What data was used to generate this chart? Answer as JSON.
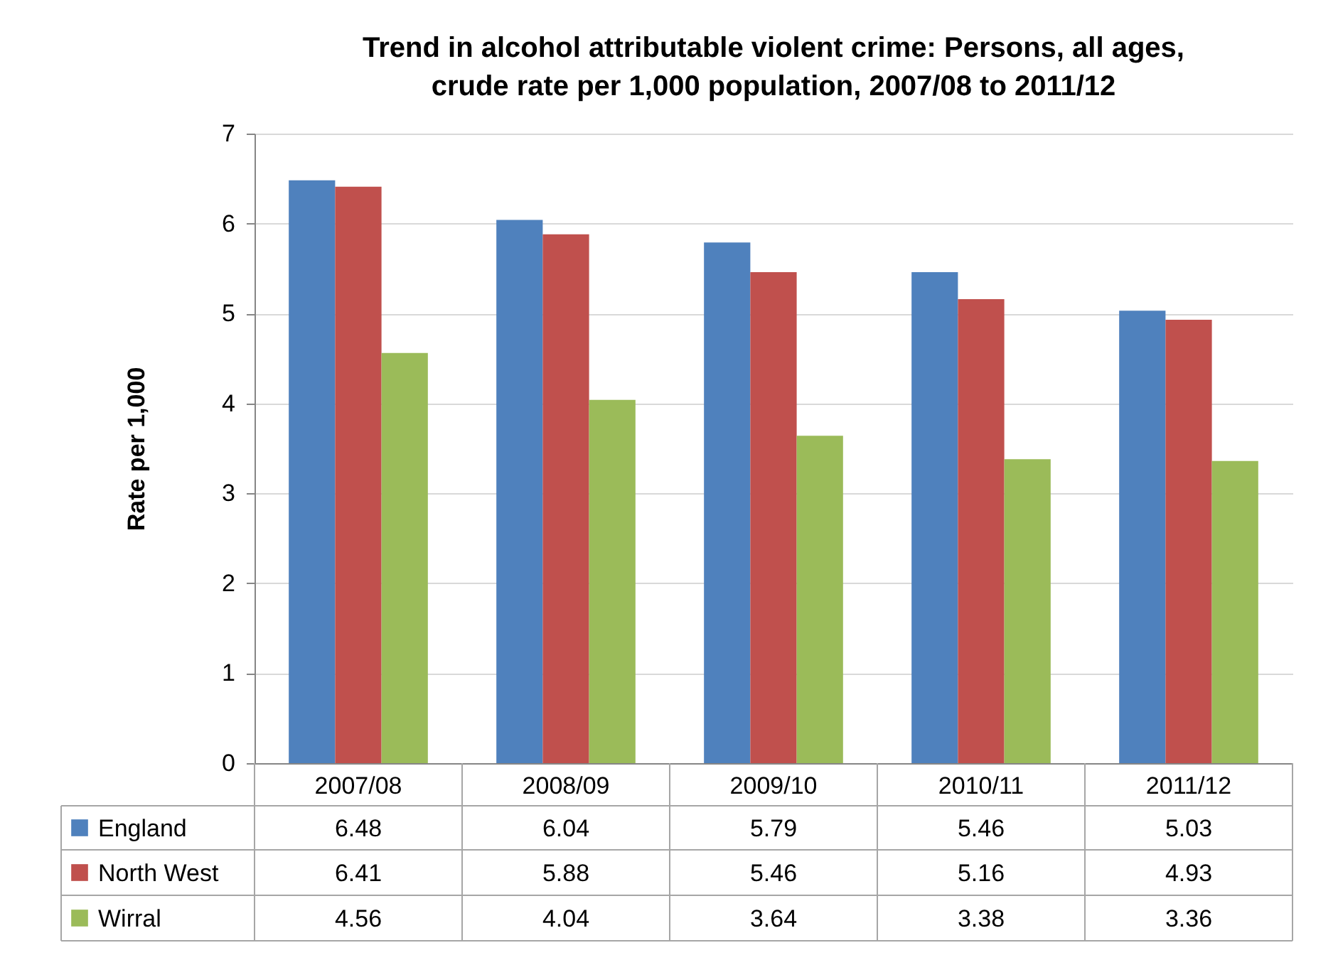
{
  "chart_data": {
    "type": "bar",
    "title": "Trend in alcohol attributable violent crime: Persons, all ages, crude rate per 1,000 population, 2007/08 to 2011/12",
    "ylabel": "Rate per 1,000",
    "categories": [
      "2007/08",
      "2008/09",
      "2009/10",
      "2010/11",
      "2011/12"
    ],
    "series": [
      {
        "name": "England",
        "color": "#4f81bd",
        "values": [
          6.48,
          6.04,
          5.79,
          5.46,
          5.03
        ]
      },
      {
        "name": "North West",
        "color": "#c0504d",
        "values": [
          6.41,
          5.88,
          5.46,
          5.16,
          4.93
        ]
      },
      {
        "name": "Wirral",
        "color": "#9bbb59",
        "values": [
          4.56,
          4.04,
          3.64,
          3.38,
          3.36
        ]
      }
    ],
    "ylim": [
      0,
      7
    ],
    "yticks": [
      0,
      1,
      2,
      3,
      4,
      5,
      6,
      7
    ],
    "grid": "y",
    "legend": "bottom",
    "data_labels": true
  }
}
